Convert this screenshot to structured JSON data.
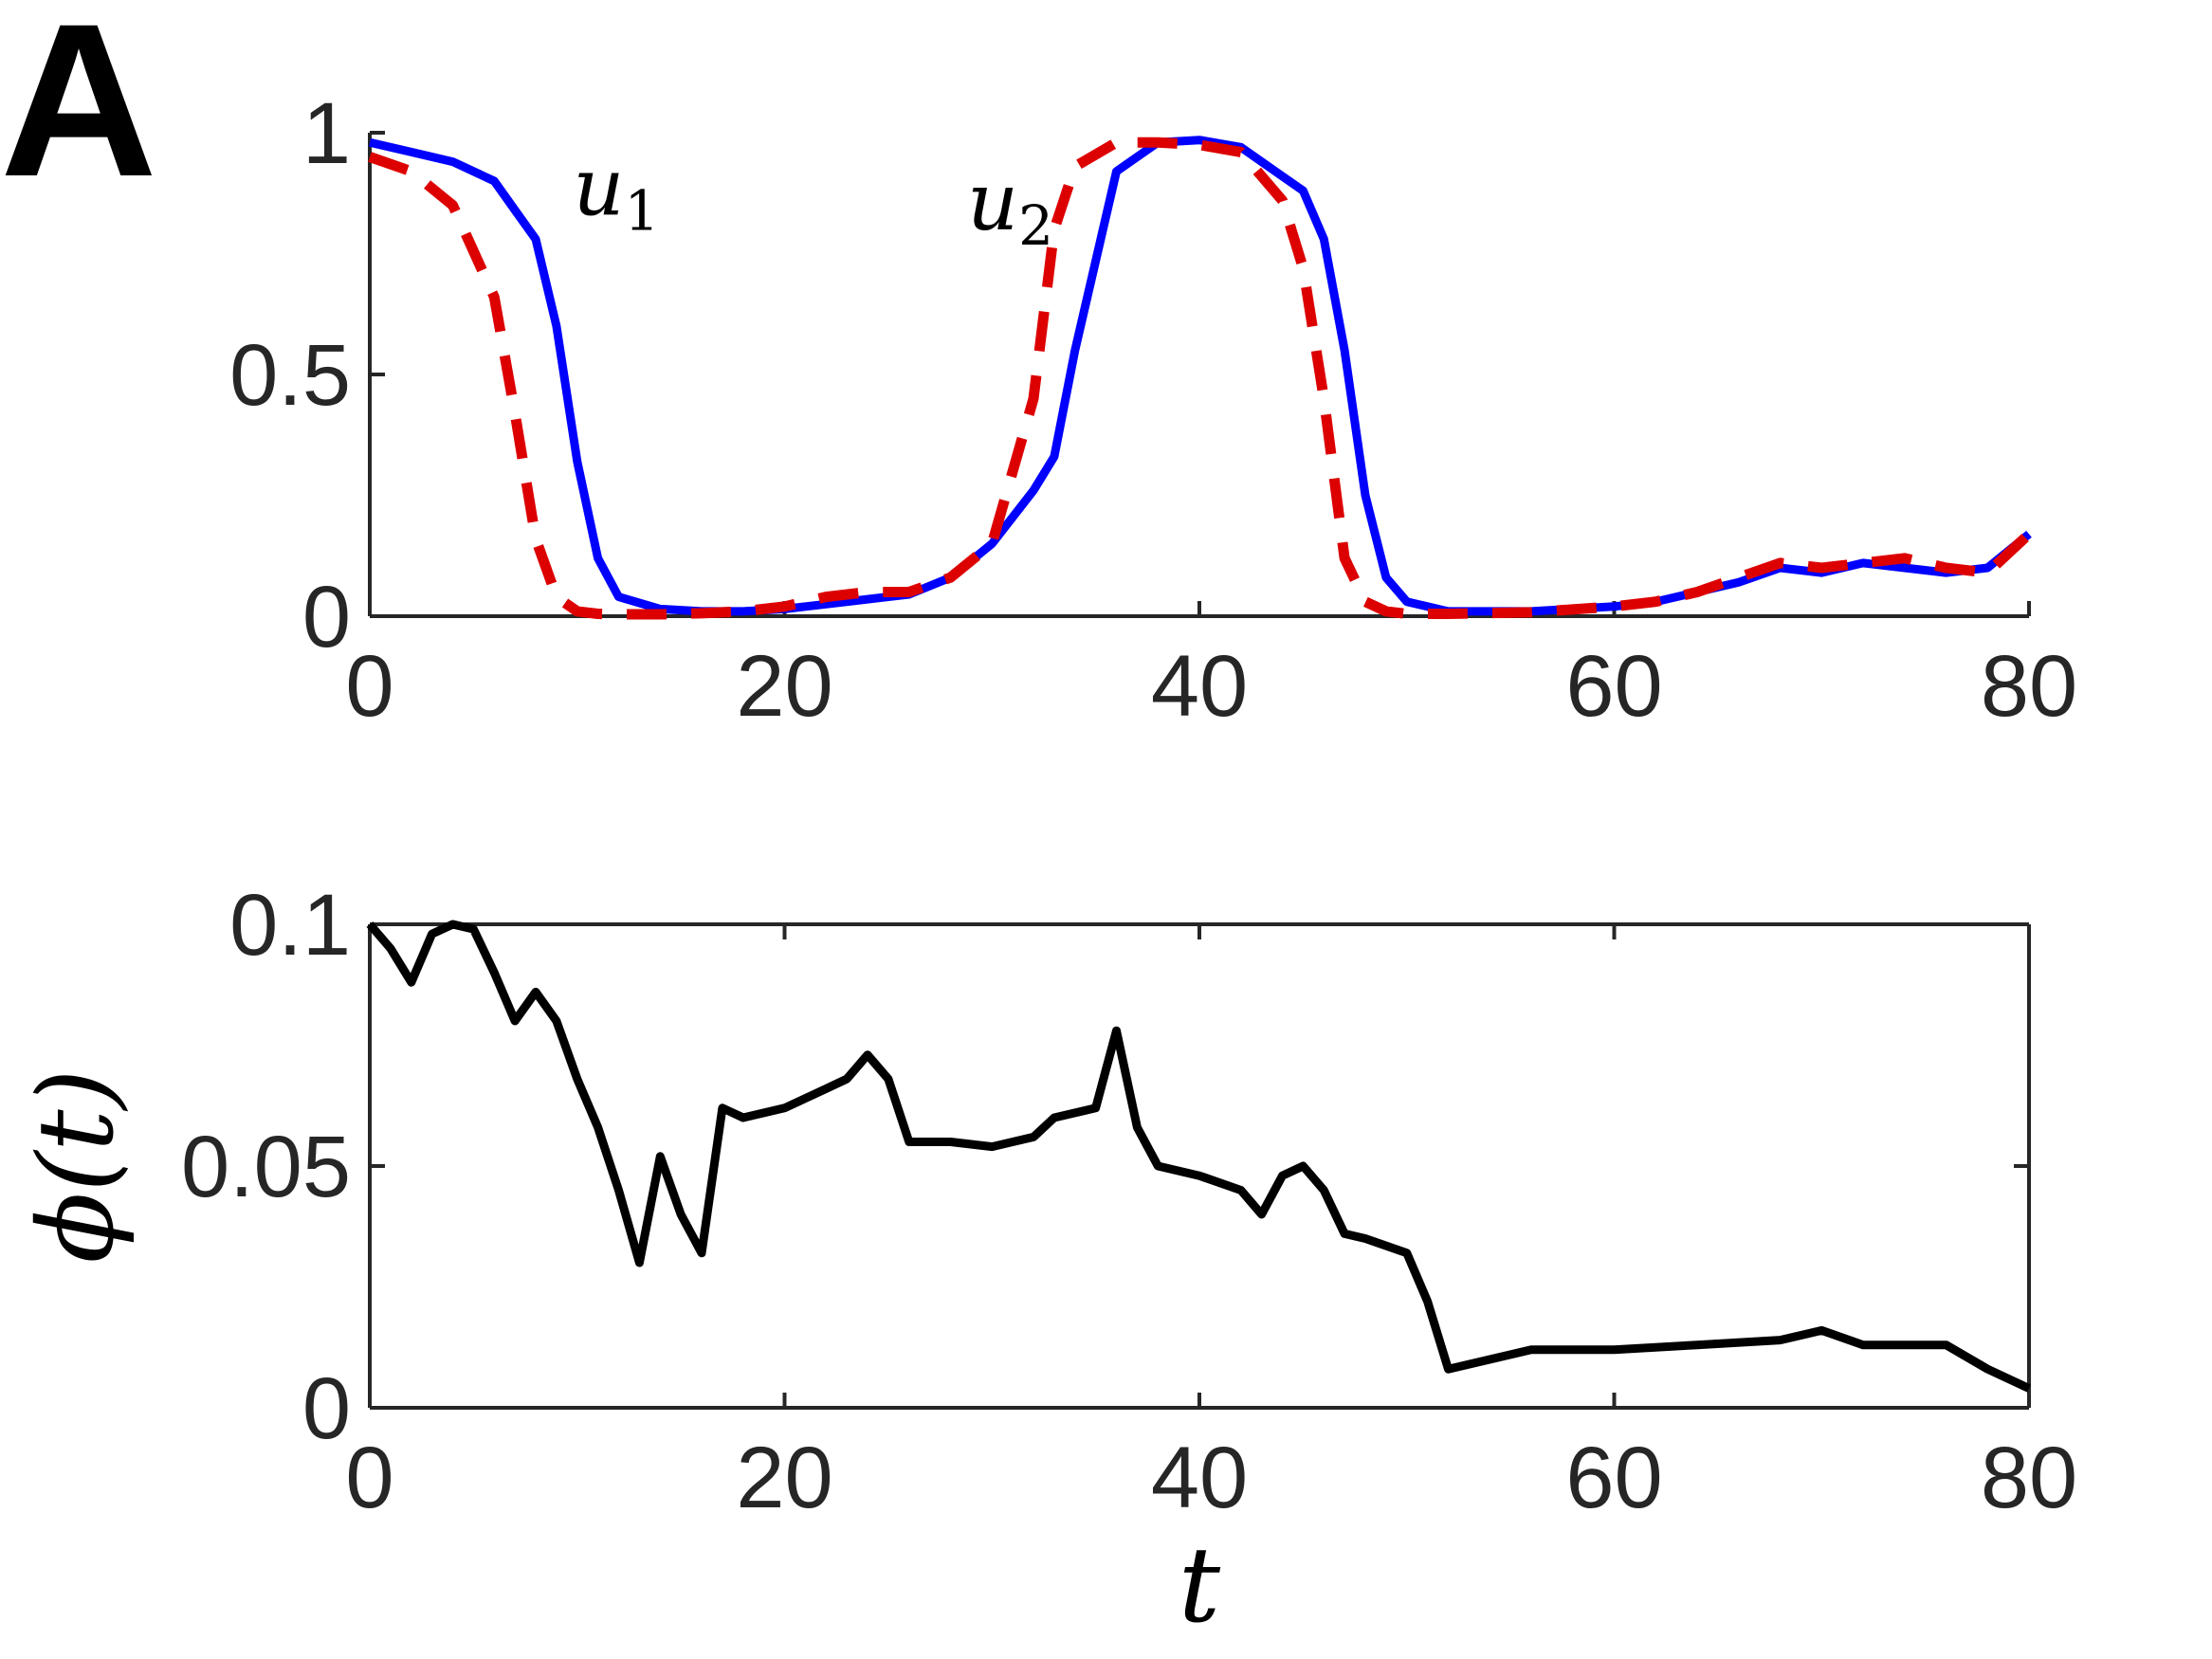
{
  "panel_label": "A",
  "chart_data": [
    {
      "type": "line",
      "x": [
        0,
        2,
        4,
        6,
        7,
        8,
        9,
        10,
        11,
        12,
        14,
        16,
        18,
        20,
        22,
        24,
        26,
        28,
        30,
        32,
        33,
        34,
        36,
        38,
        40,
        42,
        44,
        45,
        46,
        47,
        48,
        49,
        50,
        52,
        56,
        60,
        62,
        64,
        66,
        68,
        70,
        72,
        74,
        76,
        78,
        80
      ],
      "series": [
        {
          "name": "u_1",
          "style": "solid",
          "color": "#0000ff",
          "values": [
            0.98,
            0.96,
            0.94,
            0.9,
            0.84,
            0.78,
            0.6,
            0.32,
            0.12,
            0.04,
            0.015,
            0.01,
            0.01,
            0.015,
            0.025,
            0.035,
            0.045,
            0.08,
            0.15,
            0.26,
            0.33,
            0.55,
            0.92,
            0.98,
            0.985,
            0.97,
            0.91,
            0.88,
            0.78,
            0.55,
            0.25,
            0.08,
            0.03,
            0.01,
            0.01,
            0.02,
            0.03,
            0.05,
            0.07,
            0.1,
            0.09,
            0.11,
            0.1,
            0.09,
            0.1,
            0.17
          ]
        },
        {
          "name": "u_2",
          "style": "dashed",
          "color": "#dd0000",
          "values": [
            0.95,
            0.92,
            0.85,
            0.66,
            0.42,
            0.16,
            0.04,
            0.01,
            0.005,
            0.004,
            0.004,
            0.006,
            0.01,
            0.02,
            0.04,
            0.05,
            0.05,
            0.08,
            0.15,
            0.45,
            0.8,
            0.93,
            0.98,
            0.98,
            0.975,
            0.96,
            0.86,
            0.72,
            0.45,
            0.12,
            0.03,
            0.01,
            0.005,
            0.005,
            0.008,
            0.02,
            0.03,
            0.05,
            0.08,
            0.11,
            0.1,
            0.11,
            0.12,
            0.1,
            0.09,
            0.17
          ]
        }
      ],
      "annotations": [
        {
          "text": "u",
          "sub": "1",
          "x": 9.8,
          "y": 0.83
        },
        {
          "text": "u",
          "sub": "2",
          "x": 28.8,
          "y": 0.8
        }
      ],
      "xlim": [
        0,
        80
      ],
      "ylim": [
        0,
        1
      ],
      "xticks": [
        "0",
        "20",
        "40",
        "60",
        "80"
      ],
      "yticks": [
        "0",
        "0.5",
        "1"
      ],
      "xlabel": "",
      "ylabel": "",
      "grid": false,
      "box": false
    },
    {
      "type": "line",
      "x": [
        0,
        1,
        2,
        3,
        4,
        5,
        6,
        7,
        8,
        9,
        10,
        11,
        12,
        13,
        14,
        15,
        16,
        17,
        18,
        20,
        22,
        23,
        24,
        25,
        26,
        28,
        30,
        32,
        33,
        34,
        35,
        36,
        37,
        38,
        40,
        42,
        43,
        44,
        45,
        46,
        47,
        48,
        50,
        51,
        52,
        54,
        56,
        60,
        64,
        68,
        70,
        72,
        76,
        78,
        80
      ],
      "series": [
        {
          "name": "",
          "style": "solid",
          "color": "#000000",
          "values": [
            0.1,
            0.095,
            0.088,
            0.098,
            0.1,
            0.099,
            0.09,
            0.08,
            0.086,
            0.08,
            0.068,
            0.058,
            0.045,
            0.03,
            0.052,
            0.04,
            0.032,
            0.062,
            0.06,
            0.062,
            0.066,
            0.068,
            0.073,
            0.068,
            0.055,
            0.055,
            0.054,
            0.056,
            0.06,
            0.061,
            0.062,
            0.078,
            0.058,
            0.05,
            0.048,
            0.045,
            0.04,
            0.048,
            0.05,
            0.045,
            0.036,
            0.035,
            0.032,
            0.022,
            0.008,
            0.01,
            0.012,
            0.012,
            0.013,
            0.014,
            0.016,
            0.013,
            0.013,
            0.008,
            0.004
          ]
        }
      ],
      "xlim": [
        0,
        80
      ],
      "ylim": [
        0,
        0.1
      ],
      "xticks": [
        "0",
        "20",
        "40",
        "60",
        "80"
      ],
      "yticks": [
        "0",
        "0.05",
        "0.1"
      ],
      "xlabel": "t",
      "ylabel": "ϕ(t)",
      "grid": false,
      "box": true
    }
  ]
}
